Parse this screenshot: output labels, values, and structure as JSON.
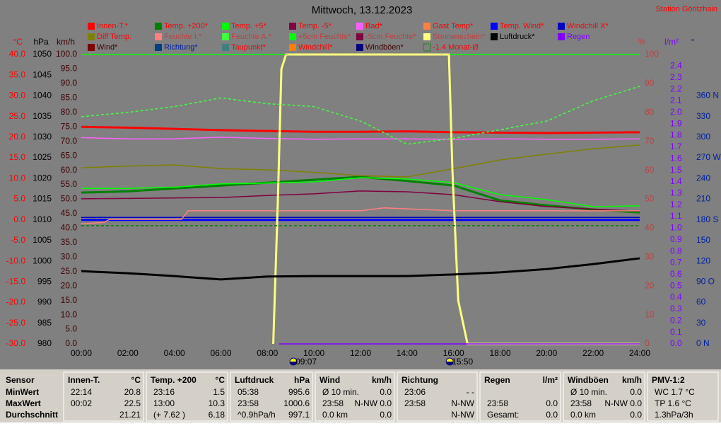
{
  "chart_data": {
    "type": "line",
    "title": "Mittwoch, 13.12.2023",
    "station": "Station Göritzhain",
    "xlim": [
      0,
      24
    ],
    "xticks": [
      {
        "value": 0,
        "label": "00:00"
      },
      {
        "value": 2,
        "label": "02:00"
      },
      {
        "value": 4,
        "label": "04:00"
      },
      {
        "value": 6,
        "label": "06:00"
      },
      {
        "value": 8,
        "label": "08:00"
      },
      {
        "value": 10,
        "label": "10:00"
      },
      {
        "value": 12,
        "label": "12:00"
      },
      {
        "value": 14,
        "label": "14:00"
      },
      {
        "value": 16,
        "label": "16:00"
      },
      {
        "value": 18,
        "label": "18:00"
      },
      {
        "value": 20,
        "label": "20:00"
      },
      {
        "value": 22,
        "label": "22:00"
      },
      {
        "value": 24,
        "label": "24:00"
      }
    ],
    "x": [
      0,
      2,
      4,
      6,
      8,
      10,
      12,
      14,
      16,
      18,
      20,
      22,
      24
    ],
    "y_axes": [
      {
        "unit": "°C",
        "color": "#ff0000",
        "lim": [
          -30,
          40
        ],
        "ticks": [
          {
            "value": 40,
            "label": "40.0"
          },
          {
            "value": 35,
            "label": "35.0"
          },
          {
            "value": 30,
            "label": "30.0"
          },
          {
            "value": 25,
            "label": "25.0"
          },
          {
            "value": 20,
            "label": "20.0"
          },
          {
            "value": 15,
            "label": "15.0"
          },
          {
            "value": 10,
            "label": "10.0"
          },
          {
            "value": 5,
            "label": "5.0"
          },
          {
            "value": 0,
            "label": "0.0"
          },
          {
            "value": -5,
            "label": "-5.0"
          },
          {
            "value": -10,
            "label": "-10.0"
          },
          {
            "value": -15,
            "label": "-15.0"
          },
          {
            "value": -20,
            "label": "-20.0"
          },
          {
            "value": -25,
            "label": "-25.0"
          },
          {
            "value": -30,
            "label": "-30.0"
          }
        ]
      },
      {
        "unit": "hPa",
        "color": "#000000",
        "lim": [
          980,
          1050
        ],
        "ticks": [
          1050,
          1045,
          1040,
          1035,
          1030,
          1025,
          1020,
          1015,
          1010,
          1005,
          1000,
          995,
          990,
          985,
          980
        ]
      },
      {
        "unit": "km/h",
        "color": "#400000",
        "lim": [
          0,
          100
        ],
        "ticks": [
          {
            "value": 100,
            "label": "100.0"
          },
          {
            "value": 95,
            "label": "95.0"
          },
          {
            "value": 90,
            "label": "90.0"
          },
          {
            "value": 85,
            "label": "85.0"
          },
          {
            "value": 80,
            "label": "80.0"
          },
          {
            "value": 75,
            "label": "75.0"
          },
          {
            "value": 70,
            "label": "70.0"
          },
          {
            "value": 65,
            "label": "65.0"
          },
          {
            "value": 60,
            "label": "60.0"
          },
          {
            "value": 55,
            "label": "55.0"
          },
          {
            "value": 50,
            "label": "50.0"
          },
          {
            "value": 45,
            "label": "45.0"
          },
          {
            "value": 40,
            "label": "40.0"
          },
          {
            "value": 35,
            "label": "35.0"
          },
          {
            "value": 30,
            "label": "30.0"
          },
          {
            "value": 25,
            "label": "25.0"
          },
          {
            "value": 20,
            "label": "20.0"
          },
          {
            "value": 15,
            "label": "15.0"
          },
          {
            "value": 10,
            "label": "10.0"
          },
          {
            "value": 5,
            "label": "5.0"
          },
          {
            "value": 0,
            "label": "0.0"
          }
        ]
      },
      {
        "unit": "%",
        "color": "#c04040",
        "lim": [
          0,
          100
        ],
        "ticks": [
          100,
          90,
          80,
          70,
          60,
          50,
          40,
          30,
          20,
          10,
          0
        ]
      },
      {
        "unit": "l/m²",
        "color": "#8000ff",
        "lim": [
          0,
          2.5
        ],
        "ticks": [
          2.4,
          2.3,
          2.2,
          2.1,
          {
            "value": 2,
            "label": "2.0"
          },
          1.9,
          1.8,
          1.7,
          1.6,
          1.5,
          1.4,
          1.3,
          1.2,
          1.1,
          {
            "value": 1,
            "label": "1.0"
          },
          0.9,
          0.8,
          0.7,
          0.6,
          0.5,
          0.4,
          0.3,
          0.2,
          0.1,
          {
            "value": 0,
            "label": "0.0"
          }
        ]
      },
      {
        "unit": "°",
        "color": "#0020a0",
        "lim": [
          0,
          420
        ],
        "ticks": [
          {
            "value": 360,
            "label": "360 N"
          },
          330,
          300,
          {
            "value": 270,
            "label": "270 W"
          },
          240,
          210,
          {
            "value": 180,
            "label": "180 S"
          },
          150,
          120,
          {
            "value": 90,
            "label": "90 O"
          },
          60,
          30,
          {
            "value": 0,
            "label": "0   N"
          }
        ]
      }
    ],
    "series": [
      {
        "name": "Innen-T.*",
        "color": "#ff0000",
        "axis": 0,
        "thick": true,
        "values": [
          22.5,
          22.3,
          22.0,
          21.7,
          21.5,
          21.3,
          21.3,
          21.4,
          21.2,
          21.1,
          21.0,
          21.1,
          21.2
        ]
      },
      {
        "name": "Temp. +200*",
        "color": "#008000",
        "axis": 0,
        "thick": true,
        "values": [
          6.6,
          6.9,
          7.6,
          8.3,
          9.0,
          9.7,
          10.4,
          9.4,
          8.3,
          4.7,
          3.5,
          2.5,
          1.8
        ]
      },
      {
        "name": "Temp. +5*",
        "color": "#00ff00",
        "axis": 0,
        "values": [
          7.6,
          7.6,
          7.9,
          8.7,
          8.9,
          9.2,
          10.2,
          9.9,
          9.0,
          6.1,
          4.9,
          3.2,
          3.4
        ]
      },
      {
        "name": "Temp. -5*",
        "color": "#800040",
        "axis": 0,
        "values": [
          5.1,
          5.2,
          5.3,
          5.4,
          5.9,
          6.3,
          7.0,
          6.8,
          6.1,
          4.4,
          3.2,
          2.6,
          2.1
        ]
      },
      {
        "name": "Bad*",
        "color": "#ff60ff",
        "axis": 0,
        "values": [
          19.9,
          19.6,
          19.6,
          20.0,
          19.7,
          19.5,
          19.6,
          19.6,
          19.5,
          19.6,
          19.5,
          19.5,
          19.6
        ]
      },
      {
        "name": "Gast Temp*",
        "color": "#ff8040",
        "axis": 0
      },
      {
        "name": "Temp. Wind*",
        "color": "#0000ff",
        "axis": 0,
        "thick": true,
        "x": [
          0,
          24
        ],
        "values": [
          0,
          0
        ]
      },
      {
        "name": "Windchill X*",
        "color": "#0000c0",
        "axis": 0,
        "x": [
          0,
          24
        ],
        "values": [
          0.6,
          0.6
        ]
      },
      {
        "name": "Diff Temp.",
        "color": "#808000",
        "axis": 0,
        "values": [
          12.6,
          13.0,
          13.3,
          12.4,
          12.1,
          11.5,
          10.7,
          10.4,
          12.4,
          14.5,
          15.9,
          17.2,
          18.1
        ]
      },
      {
        "name": "Feuchte I.*",
        "color": "#ff8080",
        "axis": 3,
        "x": [
          0,
          1,
          1.2,
          4.3,
          4.6,
          8,
          12,
          13,
          16,
          20,
          24
        ],
        "values": [
          41.5,
          42,
          43,
          43,
          46,
          46,
          46,
          47,
          46,
          46,
          46
        ]
      },
      {
        "name": "Feuchte A.*",
        "color": "#40ff40",
        "axis": 3,
        "dashed": true,
        "values": [
          78.5,
          80,
          82,
          85,
          83,
          82,
          77,
          69,
          71,
          74,
          77,
          84,
          89
        ]
      },
      {
        "name": "+5cm Feuchte*",
        "color": "#00ff00",
        "axis": 3,
        "x": [
          0,
          24
        ],
        "values": [
          100,
          100
        ]
      },
      {
        "name": "-5cm Feuchte*",
        "color": "#800040",
        "axis": 3
      },
      {
        "name": "Sonnenschein*",
        "color": "#ffff80",
        "axis": 3,
        "thick": true,
        "x": [
          8.25,
          8.45,
          8.6,
          8.8,
          15.8,
          15.95,
          16.2,
          16.6,
          24
        ],
        "values": [
          0,
          50,
          95,
          100,
          100,
          60,
          15,
          0,
          0
        ]
      },
      {
        "name": "Luftdruck*",
        "color": "#000000",
        "axis": 1,
        "thick": true,
        "values": [
          997.6,
          997.1,
          996.4,
          995.6,
          996.3,
          996.4,
          996.4,
          996.4,
          996.8,
          997.3,
          998.1,
          999.3,
          1000.7
        ]
      },
      {
        "name": "Regen",
        "color": "#8000ff",
        "axis": 4,
        "x": [
          8.5,
          24
        ],
        "values": [
          0,
          0
        ]
      },
      {
        "name": "Wind*",
        "color": "#800000",
        "axis": 2
      },
      {
        "name": "Richtung*",
        "color": "#004080",
        "axis": 5
      },
      {
        "name": "Taupunkt*",
        "color": "#408080",
        "axis": 0
      },
      {
        "name": "Windchill*",
        "color": "#ff8000",
        "axis": 0
      },
      {
        "name": "Windböen*",
        "color": "#000080",
        "axis": 2
      },
      {
        "name": "-1.4 Monat-Ø",
        "color": "#008000",
        "axis": 0,
        "dashed": true,
        "outline": true,
        "x": [
          0,
          24
        ],
        "values": [
          -1.4,
          -1.4
        ]
      }
    ],
    "sun": {
      "rise": "09:07",
      "set": "15:50"
    }
  },
  "stats": {
    "row_labels": [
      "Sensor",
      "MinWert",
      "MaxWert",
      "Durchschnitt"
    ],
    "columns": [
      {
        "title": "Innen-T.",
        "unit": "°C",
        "rows": [
          {
            "left": "22:14",
            "right": "20.8"
          },
          {
            "left": "00:02",
            "right": "22.5"
          },
          {
            "right": "21.21"
          }
        ]
      },
      {
        "title": "Temp. +200",
        "unit": "°C",
        "rows": [
          {
            "left": "23:16",
            "right": "1.5"
          },
          {
            "left": "13:00",
            "right": "10.3"
          },
          {
            "left": "(+ 7.62 )",
            "right": "6.18"
          }
        ]
      },
      {
        "title": "Luftdruck",
        "unit": "hPa",
        "rows": [
          {
            "left": "05:38",
            "right": "995.6"
          },
          {
            "left": "23:58",
            "right": "1000.6"
          },
          {
            "left": "^0.9hPa/h",
            "right": "997.1"
          }
        ]
      },
      {
        "title": "Wind",
        "unit": "km/h",
        "rows": [
          {
            "left": "Ø 10 min.",
            "right": "0.0"
          },
          {
            "left": "23:58",
            "right": "N-NW 0.0"
          },
          {
            "left": "0.0 km",
            "right": "0.0"
          }
        ]
      },
      {
        "title": "Richtung",
        "rows": [
          {
            "left": "23:06",
            "right": "- -"
          },
          {
            "left": "23:58",
            "right": "N-NW"
          },
          {
            "right": "N-NW"
          }
        ]
      },
      {
        "title": "Regen",
        "unit": "l/m²",
        "rows": [
          {},
          {
            "left": "23:58",
            "right": "0.0"
          },
          {
            "left": "Gesamt:",
            "right": "0.0"
          }
        ]
      },
      {
        "title": "Windböen",
        "unit": "km/h",
        "rows": [
          {
            "left": "Ø 10 min.",
            "right": "0.0"
          },
          {
            "left": "23:58",
            "right": "N-NW 0.0"
          },
          {
            "left": "0.0 km",
            "right": "0.0"
          }
        ]
      },
      {
        "title": "PMV-1:2",
        "rows": [
          {
            "left": "WC 1.7 °C"
          },
          {
            "left": "TP 1.6 °C"
          },
          {
            "left": "1.3hPa/3h"
          }
        ]
      }
    ]
  }
}
